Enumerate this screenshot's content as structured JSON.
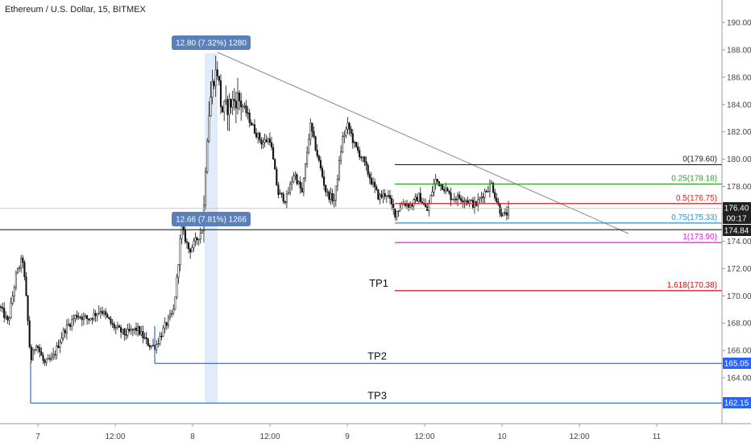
{
  "header": {
    "title": "Ethereum / U.S. Dollar, 15, BITMEX"
  },
  "chart_data": {
    "type": "candlestick",
    "ylim": [
      160.5,
      191
    ],
    "y_ticks": [
      "190.00",
      "188.00",
      "186.00",
      "184.00",
      "182.00",
      "180.00",
      "178.00",
      "176.00",
      "174.00",
      "172.00",
      "170.00",
      "168.00",
      "166.00",
      "164.00",
      "162.00"
    ],
    "x_ticks": [
      "7",
      "12:00",
      "8",
      "12:00",
      "9",
      "12:00",
      "10",
      "12:00",
      "11"
    ],
    "fib_levels": [
      {
        "label": "0(179.60)",
        "value": 179.6,
        "color": "#222222"
      },
      {
        "label": "0.25(178.18)",
        "value": 178.18,
        "color": "#2e9e2e"
      },
      {
        "label": "0.5(176.75)",
        "value": 176.75,
        "color": "#e02020"
      },
      {
        "label": "0.75(175.33)",
        "value": 175.33,
        "color": "#2a8fd6"
      },
      {
        "label": "1(173.90)",
        "value": 173.9,
        "color": "#e020e0"
      },
      {
        "label": "1.618(170.38)",
        "value": 170.38,
        "color": "#cc1010"
      }
    ],
    "price_tags": [
      {
        "label": "176.40",
        "value": 176.4,
        "bg": "#222222"
      },
      {
        "label": "00:17",
        "value": 175.8,
        "bg": "#222222"
      },
      {
        "label": "174.84",
        "value": 174.84,
        "bg": "#222222"
      },
      {
        "label": "165.05",
        "value": 165.05,
        "bg": "#2962ff"
      },
      {
        "label": "162.15",
        "value": 162.15,
        "bg": "#2962ff"
      }
    ],
    "targets": [
      {
        "label": "TP1",
        "value": 170.38
      },
      {
        "label": "TP2",
        "value": 165.05
      },
      {
        "label": "TP3",
        "value": 162.15
      }
    ],
    "measure_badges": [
      {
        "label": "12.80 (7.32%) 1280"
      },
      {
        "label": "12.66 (7.81%) 1266"
      }
    ],
    "support_line": 174.84,
    "current_price": 176.4
  },
  "colors": {
    "up": "#ffffff",
    "down": "#111111",
    "wick": "#111111",
    "badge": "#5b7fb8",
    "highlight": "#dbe6f7"
  }
}
